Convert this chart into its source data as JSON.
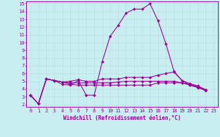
{
  "xlabel": "Windchill (Refroidissement éolien,°C)",
  "bg_color": "#c8eef0",
  "grid_color": "#c0dce0",
  "line_color": "#990099",
  "spine_color": "#9900aa",
  "xlim": [
    -0.5,
    23.5
  ],
  "ylim": [
    1.7,
    15.3
  ],
  "xticks": [
    0,
    1,
    2,
    3,
    4,
    5,
    6,
    7,
    8,
    9,
    10,
    11,
    12,
    13,
    14,
    15,
    16,
    17,
    18,
    19,
    20,
    21,
    22,
    23
  ],
  "yticks": [
    2,
    3,
    4,
    5,
    6,
    7,
    8,
    9,
    10,
    11,
    12,
    13,
    14,
    15
  ],
  "lines": [
    {
      "x": [
        0,
        1,
        2,
        3,
        4,
        5,
        6,
        7,
        8,
        9,
        10,
        11,
        12,
        13,
        14,
        15,
        16,
        17,
        18,
        19,
        20,
        21,
        22
      ],
      "y": [
        3.2,
        2.1,
        5.3,
        5.1,
        4.6,
        4.5,
        5.1,
        3.2,
        3.2,
        7.5,
        10.8,
        12.2,
        13.8,
        14.3,
        14.3,
        15.0,
        12.8,
        9.8,
        6.3,
        5.1,
        4.5,
        4.2,
        3.8
      ]
    },
    {
      "x": [
        0,
        1,
        2,
        3,
        4,
        5,
        6,
        7,
        8,
        9,
        10,
        11,
        12,
        13,
        14,
        15,
        16,
        17,
        18,
        19,
        20,
        21,
        22
      ],
      "y": [
        3.2,
        2.1,
        5.3,
        5.1,
        4.9,
        5.0,
        5.2,
        5.0,
        5.0,
        5.3,
        5.3,
        5.3,
        5.5,
        5.5,
        5.5,
        5.5,
        5.8,
        6.0,
        6.2,
        5.1,
        4.7,
        4.4,
        3.9
      ]
    },
    {
      "x": [
        0,
        1,
        2,
        3,
        4,
        5,
        6,
        7,
        8,
        9,
        10,
        11,
        12,
        13,
        14,
        15,
        16,
        17,
        18,
        19,
        20,
        21,
        22
      ],
      "y": [
        3.2,
        2.1,
        5.3,
        5.1,
        4.9,
        4.8,
        4.8,
        4.8,
        4.8,
        4.8,
        4.8,
        4.9,
        5.0,
        5.0,
        5.0,
        5.0,
        5.0,
        5.0,
        5.0,
        4.8,
        4.6,
        4.3,
        3.9
      ]
    },
    {
      "x": [
        0,
        1,
        2,
        3,
        4,
        5,
        6,
        7,
        8,
        9,
        10,
        11,
        12,
        13,
        14,
        15,
        16,
        17,
        18,
        19,
        20,
        21,
        22
      ],
      "y": [
        3.2,
        2.1,
        5.3,
        5.1,
        4.9,
        4.6,
        4.5,
        4.5,
        4.5,
        4.5,
        4.5,
        4.5,
        4.5,
        4.5,
        4.5,
        4.5,
        4.8,
        4.8,
        4.8,
        4.8,
        4.5,
        4.2,
        3.8
      ]
    }
  ],
  "tick_fontsize": 5.0,
  "xlabel_fontsize": 5.5
}
